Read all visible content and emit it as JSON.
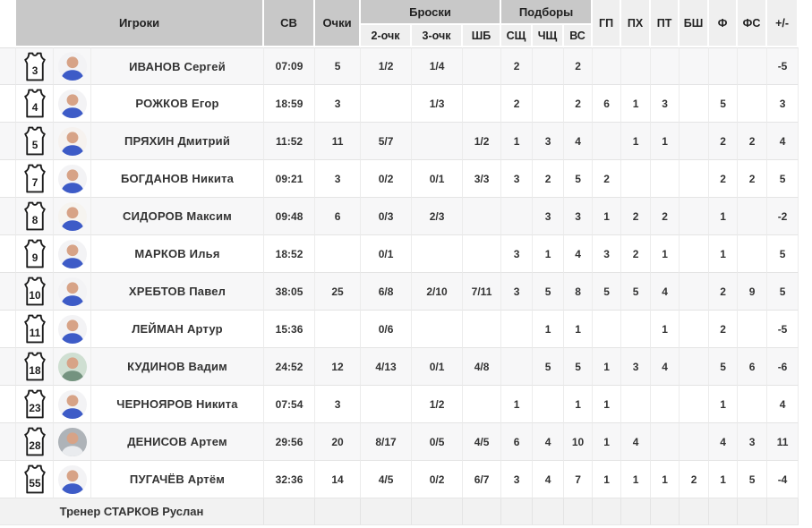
{
  "header": {
    "players": "Игроки",
    "time": "СВ",
    "points": "Очки",
    "shots_group": "Броски",
    "rebounds_group": "Подборы",
    "shots_sub": [
      "2-очк",
      "3-очк",
      "ШБ"
    ],
    "rebounds_sub": [
      "СЩ",
      "ЧЩ",
      "ВС"
    ],
    "single_cols": [
      "ГП",
      "ПХ",
      "ПТ",
      "БШ",
      "Ф",
      "ФС",
      "+/-"
    ]
  },
  "players": [
    {
      "number": "3",
      "name": "ИВАНОВ Сергей",
      "avatar": {
        "bg": "#f3f3f5",
        "shirt": "#3d5bc7"
      },
      "stats": [
        "07:09",
        "5",
        "1/2",
        "1/4",
        "",
        "2",
        "",
        "2",
        "",
        "",
        "",
        "",
        "",
        "",
        "-5"
      ]
    },
    {
      "number": "4",
      "name": "РОЖКОВ Егор",
      "avatar": {
        "bg": "#f3f3f5",
        "shirt": "#3d5bc7"
      },
      "stats": [
        "18:59",
        "3",
        "",
        "1/3",
        "",
        "2",
        "",
        "2",
        "6",
        "1",
        "3",
        "",
        "5",
        "",
        "3"
      ]
    },
    {
      "number": "5",
      "name": "ПРЯХИН Дмитрий",
      "avatar": {
        "bg": "#f6f2ef",
        "shirt": "#3d5bc7"
      },
      "stats": [
        "11:52",
        "11",
        "5/7",
        "",
        "1/2",
        "1",
        "3",
        "4",
        "",
        "1",
        "1",
        "",
        "2",
        "2",
        "4"
      ]
    },
    {
      "number": "7",
      "name": "БОГДАНОВ Никита",
      "avatar": {
        "bg": "#f3f3f5",
        "shirt": "#3d5bc7"
      },
      "stats": [
        "09:21",
        "3",
        "0/2",
        "0/1",
        "3/3",
        "3",
        "2",
        "5",
        "2",
        "",
        "",
        "",
        "2",
        "2",
        "5"
      ]
    },
    {
      "number": "8",
      "name": "СИДОРОВ Максим",
      "avatar": {
        "bg": "#f6f4f0",
        "shirt": "#3d5bc7"
      },
      "stats": [
        "09:48",
        "6",
        "0/3",
        "2/3",
        "",
        "",
        "3",
        "3",
        "1",
        "2",
        "2",
        "",
        "1",
        "",
        "-2"
      ]
    },
    {
      "number": "9",
      "name": "МАРКОВ Илья",
      "avatar": {
        "bg": "#f3f3f5",
        "shirt": "#3d5bc7"
      },
      "stats": [
        "18:52",
        "",
        "0/1",
        "",
        "",
        "3",
        "1",
        "4",
        "3",
        "2",
        "1",
        "",
        "1",
        "",
        "5"
      ]
    },
    {
      "number": "10",
      "name": "ХРЕБТОВ Павел",
      "avatar": {
        "bg": "#f3f3f5",
        "shirt": "#3d5bc7"
      },
      "stats": [
        "38:05",
        "25",
        "6/8",
        "2/10",
        "7/11",
        "3",
        "5",
        "8",
        "5",
        "5",
        "4",
        "",
        "2",
        "9",
        "5"
      ]
    },
    {
      "number": "11",
      "name": "ЛЕЙМАН Артур",
      "avatar": {
        "bg": "#f3f3f5",
        "shirt": "#3d5bc7"
      },
      "stats": [
        "15:36",
        "",
        "0/6",
        "",
        "",
        "",
        "1",
        "1",
        "",
        "",
        "1",
        "",
        "2",
        "",
        "-5"
      ]
    },
    {
      "number": "18",
      "name": "КУДИНОВ Вадим",
      "avatar": {
        "bg": "#cfdfd2",
        "shirt": "#74937f"
      },
      "stats": [
        "24:52",
        "12",
        "4/13",
        "0/1",
        "4/8",
        "",
        "5",
        "5",
        "1",
        "3",
        "4",
        "",
        "5",
        "6",
        "-6"
      ]
    },
    {
      "number": "23",
      "name": "ЧЕРНОЯРОВ Никита",
      "avatar": {
        "bg": "#f3f3f5",
        "shirt": "#3d5bc7"
      },
      "stats": [
        "07:54",
        "3",
        "",
        "1/2",
        "",
        "1",
        "",
        "1",
        "1",
        "",
        "",
        "",
        "1",
        "",
        "4"
      ]
    },
    {
      "number": "28",
      "name": "ДЕНИСОВ Артем",
      "avatar": {
        "bg": "#aeb3b8",
        "shirt": "#e9ebee"
      },
      "stats": [
        "29:56",
        "20",
        "8/17",
        "0/5",
        "4/5",
        "6",
        "4",
        "10",
        "1",
        "4",
        "",
        "",
        "4",
        "3",
        "11"
      ]
    },
    {
      "number": "55",
      "name": "ПУГАЧЁВ Артём",
      "avatar": {
        "bg": "#f3f3f5",
        "shirt": "#3d5bc7"
      },
      "stats": [
        "32:36",
        "14",
        "4/5",
        "0/2",
        "6/7",
        "3",
        "4",
        "7",
        "1",
        "1",
        "1",
        "2",
        "1",
        "5",
        "-4"
      ]
    }
  ],
  "coach": "Тренер СТАРКОВ Руслан",
  "colors": {
    "header_dark": "#c8c8c8",
    "header_light": "#efefef",
    "row_striped": "#f7f7f8",
    "coach_row": "#f2f2f2",
    "skin": "#d7a387",
    "jersey_outline": "#1c1c1c"
  }
}
